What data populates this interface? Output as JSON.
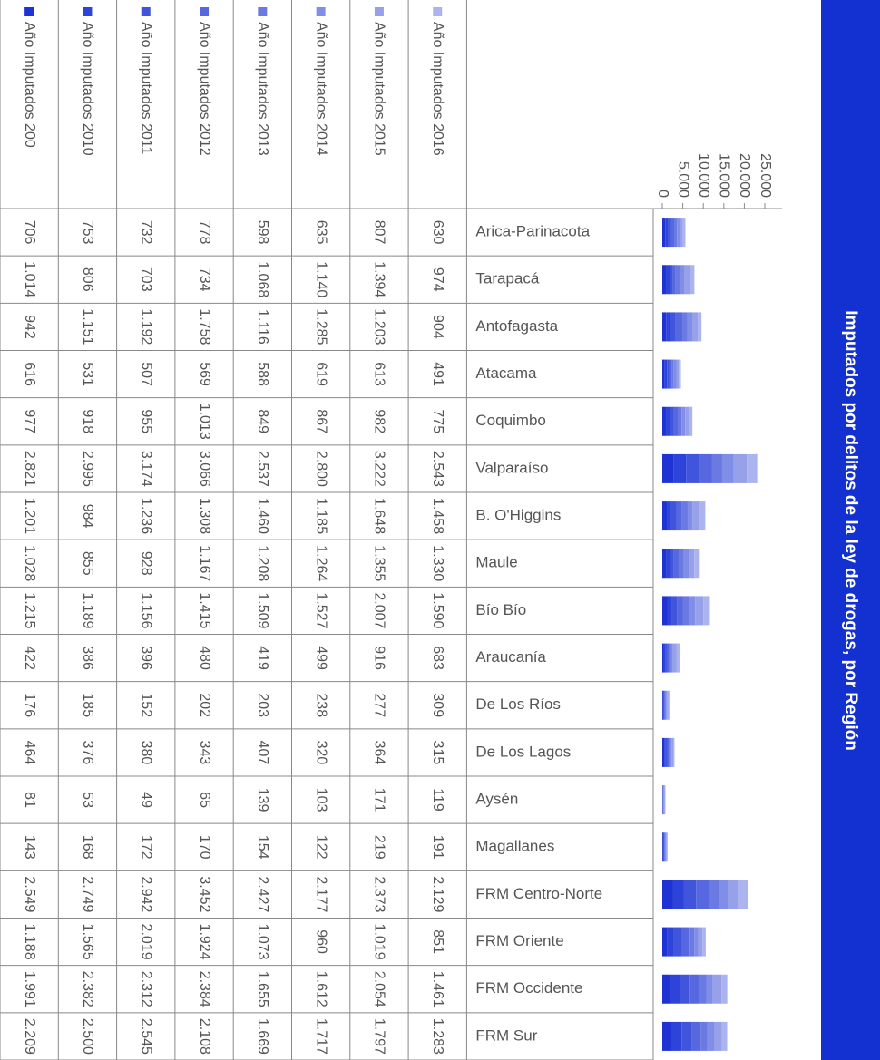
{
  "chart_data": {
    "type": "bar",
    "stacked": true,
    "title": "Imputados por delitos de la ley de drogas, por Región",
    "categories": [
      "Arica-Parinacota",
      "Tarapacá",
      "Antofagasta",
      "Atacama",
      "Coquimbo",
      "Valparaíso",
      "B. O'Higgins",
      "Maule",
      "Bío Bío",
      "Araucanía",
      "De Los Ríos",
      "De Los Lagos",
      "Aysén",
      "Magallanes",
      "FRM Centro-Norte",
      "FRM Oriente",
      "FRM Occidente",
      "FRM Sur"
    ],
    "ylim": [
      0,
      25000
    ],
    "yticks": [
      0,
      {
        "value": 5000,
        "label": "5.000"
      },
      {
        "value": 10000,
        "label": "10.000"
      },
      {
        "value": 15000,
        "label": "15.000"
      },
      {
        "value": 20000,
        "label": "20.000"
      },
      {
        "value": 25000,
        "label": "25.000"
      }
    ],
    "series": [
      {
        "name": "Año Imputados 200",
        "color": "#1f33d4",
        "values": [
          706,
          1014,
          942,
          616,
          977,
          2821,
          1201,
          1028,
          1215,
          422,
          176,
          464,
          81,
          143,
          2549,
          1188,
          1991,
          2209
        ],
        "value_labels": [
          "706",
          "1.014",
          "942",
          "616",
          "977",
          "2.821",
          "1.201",
          "1.028",
          "1.215",
          "422",
          "176",
          "464",
          "81",
          "143",
          "2.549",
          "1.188",
          "1.991",
          "2.209"
        ]
      },
      {
        "name": "Año Imputados 2010",
        "color": "#2e43d9",
        "values": [
          753,
          806,
          1151,
          531,
          918,
          2995,
          984,
          855,
          1189,
          386,
          185,
          376,
          53,
          168,
          2749,
          1565,
          2382,
          2500
        ],
        "value_labels": [
          "753",
          "806",
          "1.151",
          "531",
          "918",
          "2.995",
          "984",
          "855",
          "1.189",
          "386",
          "185",
          "376",
          "53",
          "168",
          "2.749",
          "1.565",
          "2.382",
          "2.500"
        ]
      },
      {
        "name": "Año Imputados 2011",
        "color": "#4155dc",
        "values": [
          732,
          703,
          1192,
          507,
          955,
          3174,
          1236,
          928,
          1156,
          396,
          152,
          380,
          49,
          172,
          2942,
          2019,
          2312,
          2545
        ],
        "value_labels": [
          "732",
          "703",
          "1.192",
          "507",
          "955",
          "3.174",
          "1.236",
          "928",
          "1.156",
          "396",
          "152",
          "380",
          "49",
          "172",
          "2.942",
          "2.019",
          "2.312",
          "2.545"
        ]
      },
      {
        "name": "Año Imputados 2012",
        "color": "#5667df",
        "values": [
          778,
          734,
          1758,
          569,
          1013,
          3066,
          1308,
          1167,
          1415,
          480,
          202,
          343,
          65,
          170,
          3452,
          1924,
          2384,
          2108
        ],
        "value_labels": [
          "778",
          "734",
          "1.758",
          "569",
          "1.013",
          "3.066",
          "1.308",
          "1.167",
          "1.415",
          "480",
          "202",
          "343",
          "65",
          "170",
          "3.452",
          "1.924",
          "2.384",
          "2.108"
        ]
      },
      {
        "name": "Año Imputados 2013",
        "color": "#6b7ae3",
        "values": [
          598,
          1068,
          1116,
          588,
          849,
          2537,
          1460,
          1208,
          1509,
          419,
          203,
          407,
          139,
          154,
          2427,
          1073,
          1655,
          1669
        ],
        "value_labels": [
          "598",
          "1.068",
          "1.116",
          "588",
          "849",
          "2.537",
          "1.460",
          "1.208",
          "1.509",
          "419",
          "203",
          "407",
          "139",
          "154",
          "2.427",
          "1.073",
          "1.655",
          "1.669"
        ]
      },
      {
        "name": "Año Imputados 2014",
        "color": "#808ee7",
        "values": [
          635,
          1140,
          1285,
          619,
          867,
          2800,
          1185,
          1264,
          1527,
          499,
          238,
          320,
          103,
          122,
          2177,
          960,
          1612,
          1717
        ],
        "value_labels": [
          "635",
          "1.140",
          "1.285",
          "619",
          "867",
          "2.800",
          "1.185",
          "1.264",
          "1.527",
          "499",
          "238",
          "320",
          "103",
          "122",
          "2.177",
          "960",
          "1.612",
          "1.717"
        ]
      },
      {
        "name": "Año Imputados 2015",
        "color": "#96a1ea",
        "values": [
          807,
          1394,
          1203,
          613,
          982,
          3222,
          1648,
          1355,
          2007,
          916,
          277,
          364,
          171,
          219,
          2373,
          1019,
          2054,
          1797
        ],
        "value_labels": [
          "807",
          "1.394",
          "1.203",
          "613",
          "982",
          "3.222",
          "1.648",
          "1.355",
          "2.007",
          "916",
          "277",
          "364",
          "171",
          "219",
          "2.373",
          "1.019",
          "2.054",
          "1.797"
        ]
      },
      {
        "name": "Año Imputados 2016",
        "color": "#abb4ef",
        "values": [
          630,
          974,
          904,
          491,
          775,
          2543,
          1458,
          1330,
          1590,
          683,
          309,
          315,
          119,
          191,
          2129,
          851,
          1461,
          1283
        ],
        "value_labels": [
          "630",
          "974",
          "904",
          "491",
          "775",
          "2.543",
          "1.458",
          "1.330",
          "1.590",
          "683",
          "309",
          "315",
          "119",
          "191",
          "2.129",
          "851",
          "1.461",
          "1.283"
        ]
      }
    ]
  }
}
